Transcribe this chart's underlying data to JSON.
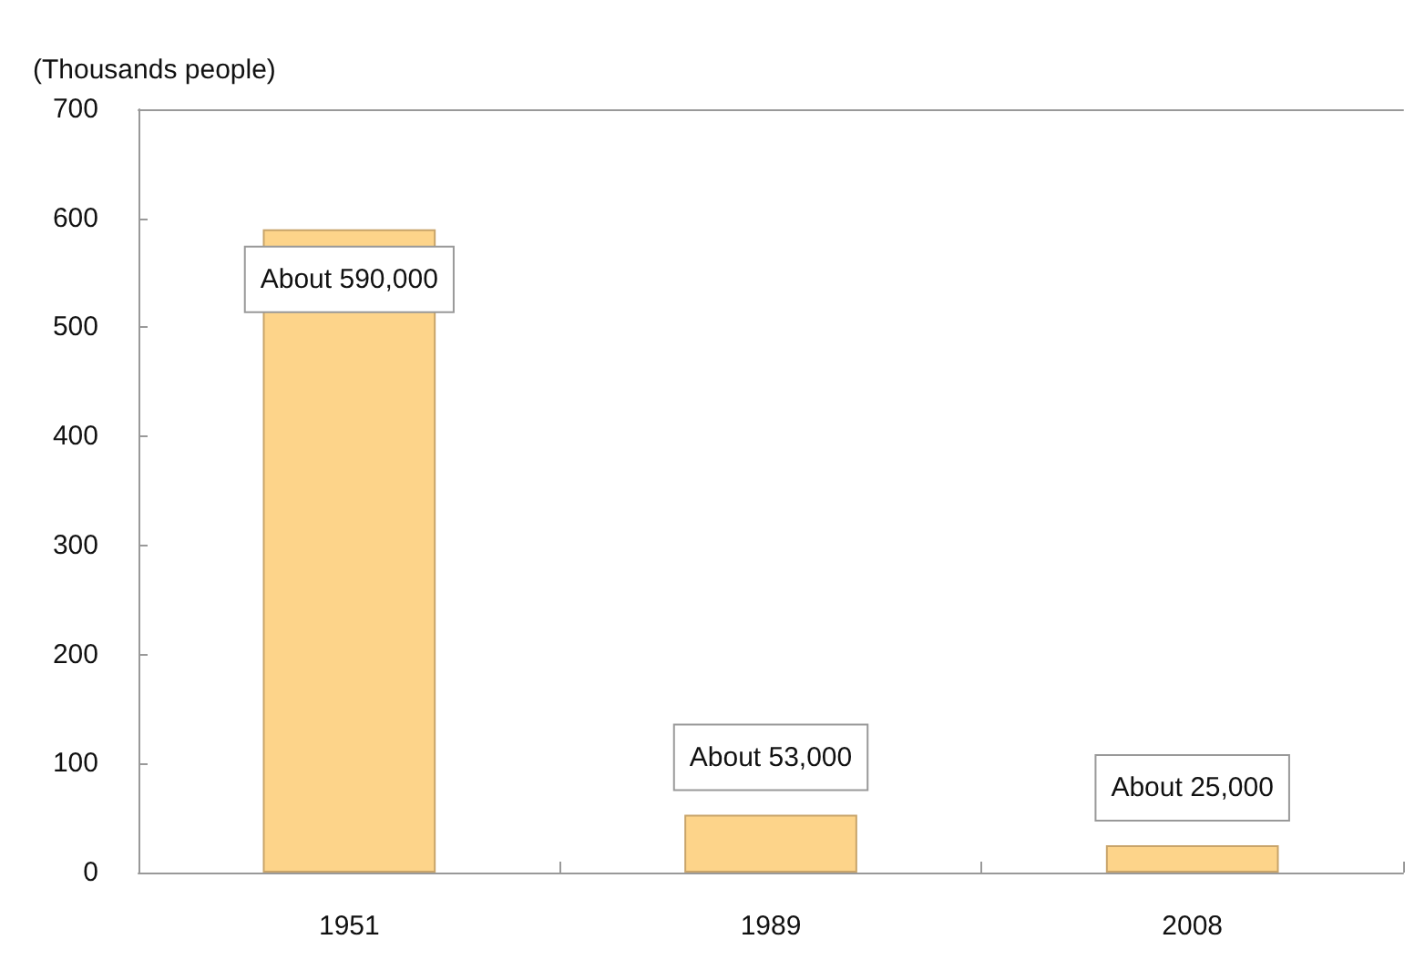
{
  "chart_data": {
    "type": "bar",
    "ylabel": "(Thousands people)",
    "categories": [
      "1951",
      "1989",
      "2008"
    ],
    "values": [
      590,
      53,
      25
    ],
    "value_labels": [
      "About 590,000",
      "About 53,000",
      "About 25,000"
    ],
    "color": "#fdd48a",
    "ylim": [
      0,
      700
    ],
    "yticks": [
      0,
      100,
      200,
      300,
      400,
      500,
      600,
      700
    ],
    "grid": false
  }
}
